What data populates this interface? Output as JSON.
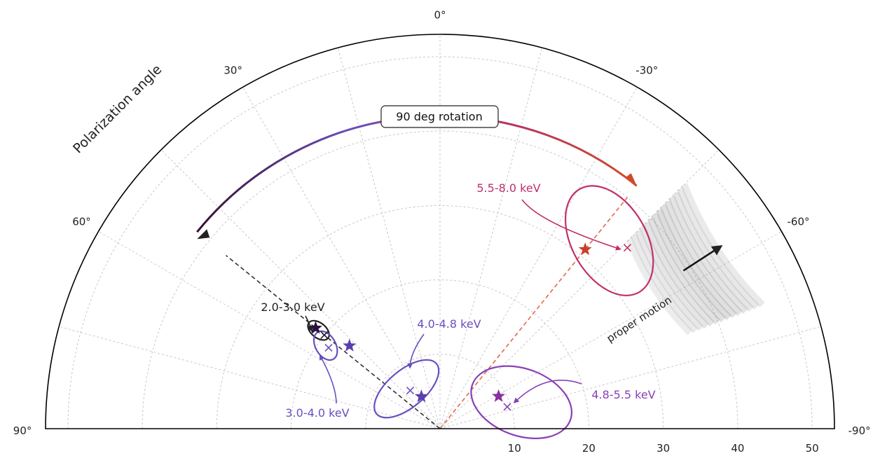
{
  "chart_data": {
    "type": "scatter",
    "projection": "polar-half",
    "title": "",
    "angle_axis": {
      "label": "Polarization angle",
      "range_deg": [
        90,
        -90
      ],
      "tick_labels": [
        "90°",
        "60°",
        "30°",
        "0°",
        "-30°",
        "-60°",
        "-90°"
      ]
    },
    "radial_axis": {
      "range": [
        0,
        53
      ],
      "tick_labels": [
        "10",
        "20",
        "30",
        "40",
        "50"
      ]
    },
    "grid": true,
    "annotations": {
      "rotation_label": "90 deg rotation",
      "proper_motion_label": "proper motion"
    },
    "series": [
      {
        "name": "2.0-3.0 keV",
        "color": "#222222",
        "measured": {
          "angle_deg": 51,
          "radius": 20.0
        },
        "model": {
          "angle_deg": 51,
          "radius": 21.5
        },
        "contour": {
          "center_angle_deg": 51,
          "center_radius": 21.0,
          "width": 2.0,
          "height": 3.3,
          "tilt_deg": 51
        }
      },
      {
        "name": "3.0-4.0 keV",
        "color": "#6a4fbe",
        "measured": {
          "angle_deg": 54,
          "radius": 18.5
        },
        "model": {
          "angle_deg": 47.5,
          "radius": 16.5
        },
        "contour": {
          "center_angle_deg": 54,
          "center_radius": 19.0,
          "width": 2.7,
          "height": 4.2,
          "tilt_deg": 30
        }
      },
      {
        "name": "4.0-4.8 keV",
        "color": "#6a4fbe",
        "measured": {
          "angle_deg": 38,
          "radius": 6.5
        },
        "model": {
          "angle_deg": 30,
          "radius": 5.0
        },
        "contour": {
          "center_angle_deg": 40,
          "center_radius": 7.0,
          "width": 10.5,
          "height": 5.0,
          "tilt_deg": 40
        }
      },
      {
        "name": "4.8-5.5 keV",
        "color": "#8a3fb7",
        "measured": {
          "angle_deg": -72,
          "radius": 9.5
        },
        "model": {
          "angle_deg": -61,
          "radius": 9.0
        },
        "contour": {
          "center_angle_deg": -72,
          "center_radius": 11.5,
          "width": 14.0,
          "height": 9.0,
          "tilt_deg": -20
        }
      },
      {
        "name": "5.5-8.0 keV",
        "color": "#c0306a",
        "measured": {
          "angle_deg": -46,
          "radius": 35.0
        },
        "model": {
          "angle_deg": -39,
          "radius": 31.0
        },
        "contour": {
          "center_angle_deg": -42,
          "center_radius": 34.0,
          "width": 10.0,
          "height": 16.0,
          "tilt_deg": 30
        }
      }
    ],
    "reference_lines": [
      {
        "angle_deg": 51,
        "to_radius": 37,
        "color": "#333333"
      },
      {
        "angle_deg": -39,
        "to_radius": 40,
        "color": "#e06a4a"
      }
    ],
    "rotation_arc": {
      "from_angle_deg": -39,
      "to_angle_deg": 51,
      "radius": 42
    },
    "proper_motion": {
      "angle_deg": -57,
      "from_radius": 39,
      "to_radius": 45
    }
  }
}
